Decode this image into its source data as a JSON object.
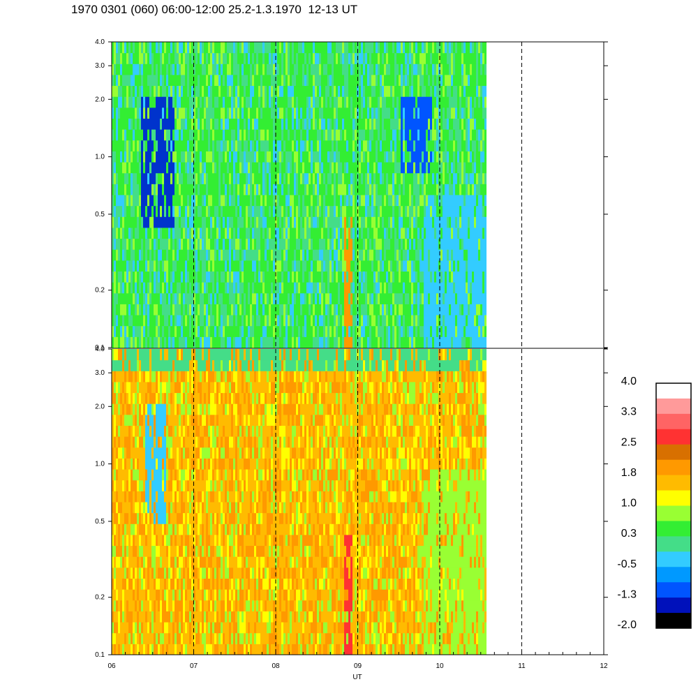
{
  "title": "1970 0301 (060) 06:00-12:00 25.2-1.3.1970  12-13 UT",
  "chart_data": {
    "type": "heatmap",
    "xlabel": "UT",
    "x_ticks": [
      "06",
      "07",
      "08",
      "09",
      "10",
      "11",
      "12"
    ],
    "x_range": [
      6,
      12
    ],
    "data_end_hour": 10.55,
    "dashed_gridlines_hours": [
      7,
      8,
      9,
      10,
      11
    ],
    "y_scale": "log",
    "y_range": [
      0.1,
      4.0
    ],
    "y_ticks": [
      "0.1",
      "0.2",
      "0.5",
      "1.0",
      "2.0",
      "3.0",
      "4.0"
    ],
    "y_tick_values": [
      0.1,
      0.2,
      0.5,
      1.0,
      2.0,
      3.0,
      4.0
    ],
    "panels": [
      {
        "name": "upper",
        "dominant": "green / cyan",
        "features": [
          {
            "desc": "deep blue vertical streaks",
            "hours": [
              6.35,
              6.75
            ],
            "freq": [
              0.4,
              2.0
            ]
          },
          {
            "desc": "blue streaks",
            "hours": [
              9.5,
              9.9
            ],
            "freq": [
              0.8,
              2.2
            ]
          },
          {
            "desc": "orange vertical band",
            "hours": [
              8.83,
              8.93
            ],
            "freq": [
              0.1,
              0.5
            ]
          },
          {
            "desc": "cyan low-frequency region",
            "hours": [
              9.8,
              10.55
            ],
            "freq": [
              0.1,
              0.6
            ]
          }
        ]
      },
      {
        "name": "lower",
        "dominant": "yellow / orange",
        "features": [
          {
            "desc": "red vertical band",
            "hours": [
              8.83,
              8.93
            ],
            "freq": [
              0.1,
              0.45
            ]
          },
          {
            "desc": "cyan streaks",
            "hours": [
              6.4,
              6.65
            ],
            "freq": [
              0.5,
              2.0
            ]
          },
          {
            "desc": "green region",
            "hours": [
              9.8,
              10.55
            ],
            "freq": [
              0.1,
              1.0
            ]
          },
          {
            "desc": "green upper strip",
            "hours": [
              6.0,
              10.55
            ],
            "freq": [
              3.0,
              4.0
            ]
          }
        ]
      }
    ],
    "colorbar": {
      "labels": [
        "4.0",
        "3.3",
        "2.5",
        "1.8",
        "1.0",
        "0.3",
        "-0.5",
        "-1.3",
        "-2.0"
      ],
      "colors": [
        "#ffffff",
        "#ff9a9a",
        "#ff6464",
        "#ff3232",
        "#d87000",
        "#ff9900",
        "#ffbb00",
        "#ffff00",
        "#99ff33",
        "#33ee33",
        "#44dd88",
        "#33ccff",
        "#0099ff",
        "#0055ff",
        "#0011bb",
        "#000000"
      ]
    }
  }
}
